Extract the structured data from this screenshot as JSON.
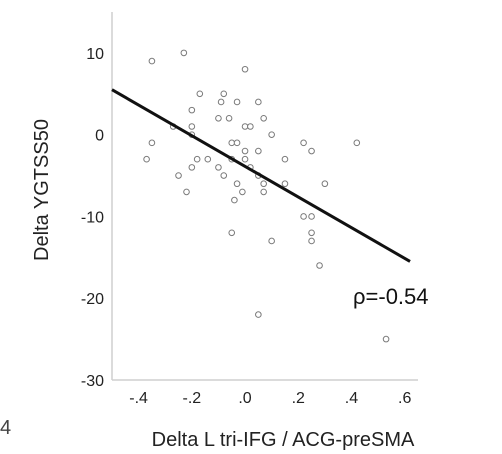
{
  "chart_data": {
    "type": "scatter",
    "xlabel": "Delta L tri-IFG / ACG-preSMA",
    "ylabel": "Delta YGTSS50",
    "xlim": [
      -0.5,
      0.65
    ],
    "ylim": [
      -30,
      15
    ],
    "x_ticks": [
      -0.4,
      -0.2,
      0.0,
      0.2,
      0.4,
      0.6
    ],
    "x_tick_labels": [
      "-.4",
      "-.2",
      ".0",
      ".2",
      ".4",
      ".6"
    ],
    "y_ticks": [
      10,
      0,
      -10,
      -20,
      -30
    ],
    "y_tick_labels": [
      "10",
      "0",
      "-10",
      "-20",
      "-30"
    ],
    "annotation": "ρ=-0.54",
    "fit_line": {
      "x": [
        -0.5,
        0.62
      ],
      "y": [
        5.5,
        -15.5
      ]
    },
    "points": [
      {
        "x": -0.35,
        "y": 9
      },
      {
        "x": -0.23,
        "y": 10
      },
      {
        "x": 0.0,
        "y": 8
      },
      {
        "x": -0.17,
        "y": 5
      },
      {
        "x": -0.08,
        "y": 5
      },
      {
        "x": -0.09,
        "y": 4
      },
      {
        "x": -0.03,
        "y": 4
      },
      {
        "x": 0.05,
        "y": 4
      },
      {
        "x": 0.07,
        "y": 2
      },
      {
        "x": -0.06,
        "y": 2
      },
      {
        "x": -0.2,
        "y": 3
      },
      {
        "x": -0.1,
        "y": 2
      },
      {
        "x": -0.27,
        "y": 1
      },
      {
        "x": -0.2,
        "y": 1
      },
      {
        "x": -0.2,
        "y": 0
      },
      {
        "x": 0.0,
        "y": 1
      },
      {
        "x": 0.02,
        "y": 1
      },
      {
        "x": 0.1,
        "y": 0
      },
      {
        "x": -0.35,
        "y": -1
      },
      {
        "x": -0.37,
        "y": -3
      },
      {
        "x": -0.05,
        "y": -1
      },
      {
        "x": -0.03,
        "y": -1
      },
      {
        "x": 0.0,
        "y": -2
      },
      {
        "x": 0.05,
        "y": -2
      },
      {
        "x": -0.14,
        "y": -3
      },
      {
        "x": -0.1,
        "y": -4
      },
      {
        "x": -0.05,
        "y": -3
      },
      {
        "x": 0.0,
        "y": -3
      },
      {
        "x": 0.02,
        "y": -4
      },
      {
        "x": -0.2,
        "y": -4
      },
      {
        "x": -0.18,
        "y": -3
      },
      {
        "x": -0.25,
        "y": -5
      },
      {
        "x": -0.08,
        "y": -5
      },
      {
        "x": -0.03,
        "y": -6
      },
      {
        "x": 0.05,
        "y": -5
      },
      {
        "x": 0.07,
        "y": -6
      },
      {
        "x": 0.07,
        "y": -7
      },
      {
        "x": -0.22,
        "y": -7
      },
      {
        "x": -0.01,
        "y": -7
      },
      {
        "x": -0.04,
        "y": -8
      },
      {
        "x": 0.15,
        "y": -3
      },
      {
        "x": 0.15,
        "y": -6
      },
      {
        "x": 0.22,
        "y": -1
      },
      {
        "x": 0.25,
        "y": -2
      },
      {
        "x": 0.42,
        "y": -1
      },
      {
        "x": 0.3,
        "y": -6
      },
      {
        "x": 0.22,
        "y": -10
      },
      {
        "x": 0.25,
        "y": -10
      },
      {
        "x": 0.25,
        "y": -12
      },
      {
        "x": 0.25,
        "y": -13
      },
      {
        "x": 0.28,
        "y": -16
      },
      {
        "x": 0.1,
        "y": -13
      },
      {
        "x": -0.05,
        "y": -12
      },
      {
        "x": 0.05,
        "y": -22
      },
      {
        "x": 0.53,
        "y": -25
      }
    ]
  },
  "stray_glyph": "4"
}
